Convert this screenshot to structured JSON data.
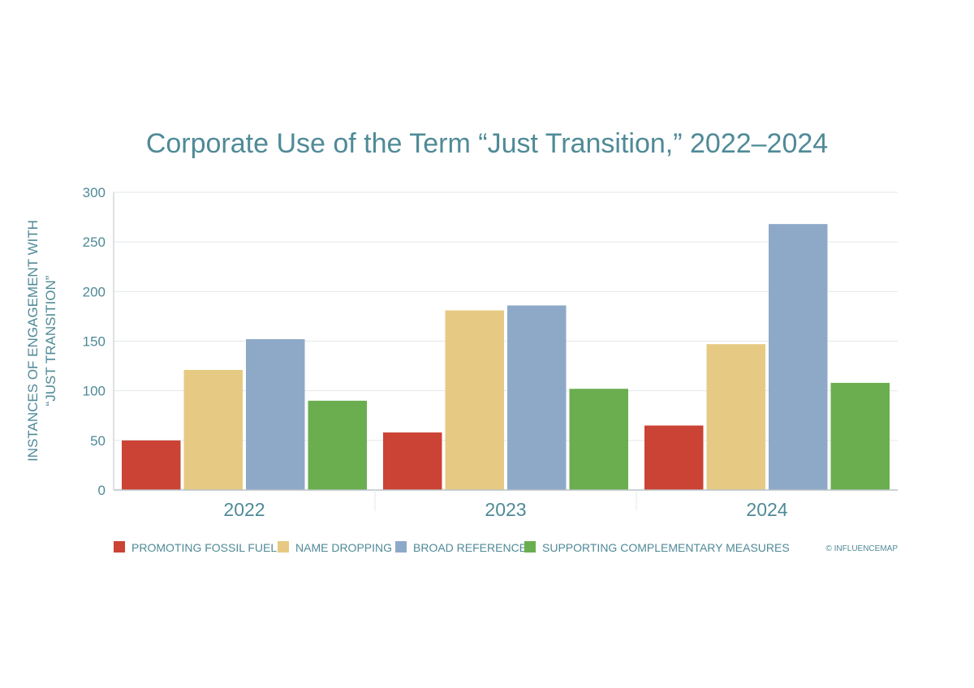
{
  "chart_data": {
    "type": "bar",
    "title": "Corporate Use of the Term “Just Transition,” 2022–2024",
    "xlabel": "",
    "ylabel_lines": [
      "INSTANCES OF ENGAGEMENT WITH",
      "“JUST TRANSITION”"
    ],
    "ylim": [
      0,
      300
    ],
    "yticks": [
      0,
      50,
      100,
      150,
      200,
      250,
      300
    ],
    "grid": true,
    "legend_position": "bottom-left",
    "categories": [
      "2022",
      "2023",
      "2024"
    ],
    "series": [
      {
        "name": "PROMOTING FOSSIL FUELS",
        "color": "#cb4335",
        "values": [
          50,
          58,
          65
        ]
      },
      {
        "name": "NAME DROPPING",
        "color": "#e6ca84",
        "values": [
          121,
          181,
          147
        ]
      },
      {
        "name": "BROAD REFERENCE",
        "color": "#8ea9c8",
        "values": [
          152,
          186,
          268
        ]
      },
      {
        "name": "SUPPORTING COMPLEMENTARY MEASURES",
        "color": "#6aae50",
        "values": [
          90,
          102,
          108
        ]
      }
    ],
    "credit": "© INFLUENCEMAP",
    "colors": {
      "text": "#4f8a97",
      "grid": "#e3e8ea",
      "axis": "#b9c3c7"
    }
  }
}
